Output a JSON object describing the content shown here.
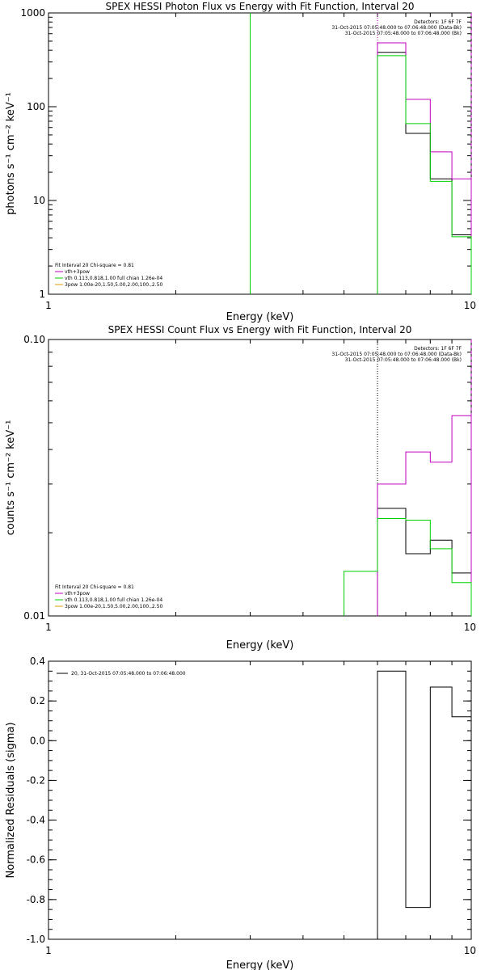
{
  "colors": {
    "data": "#000000",
    "black": "#000000",
    "magenta": "#c000c0",
    "green": "#00d000",
    "orange": "#e0a000",
    "bk": "#c000c0"
  },
  "chart_data": [
    {
      "type": "line",
      "title": "SPEX HESSI Photon Flux vs Energy with Fit Function, Interval 20",
      "xlabel": "Energy (keV)",
      "ylabel": "photons s⁻¹ cm⁻² keV⁻¹",
      "xscale": "log",
      "yscale": "log",
      "xlim": [
        1,
        10
      ],
      "ylim": [
        1,
        1000
      ],
      "xticks": [
        {
          "v": 1,
          "label": "1"
        },
        {
          "v": 10,
          "label": "10"
        }
      ],
      "yticks": [
        {
          "v": 1,
          "label": "1"
        },
        {
          "v": 10,
          "label": "10"
        },
        {
          "v": 100,
          "label": "100"
        },
        {
          "v": 1000,
          "label": "1000"
        }
      ],
      "edges": [
        6,
        7,
        8,
        9,
        10
      ],
      "series": [
        {
          "key": "data",
          "color": "#000000",
          "values": [
            380,
            52,
            17,
            4.3
          ]
        },
        {
          "key": "bk",
          "color": "#c000c0",
          "values": [
            480,
            120,
            33,
            17
          ]
        },
        {
          "key": "green",
          "color": "#00d000",
          "values": [
            350,
            66,
            16,
            4.1
          ]
        }
      ],
      "vlines": [
        {
          "x": 3,
          "color": "#00d000",
          "style": "solid"
        },
        {
          "x": 6,
          "color": "#00d000",
          "style": "dotted"
        },
        {
          "x": 6,
          "color": "#c000c0",
          "style": "dotted"
        },
        {
          "x": 10,
          "color": "#c000c0",
          "style": "dashed"
        }
      ],
      "info_lines": [
        "Detectors: 1F 6F 7F",
        "31-Oct-2015 07:05:48.000 to 07:06:48.000 (Data-Bk)",
        "31-Oct-2015 07:05:48.000 to 07:06:48.000 (Bk)"
      ],
      "fit_lines": [
        {
          "text": "Fit Interval 20   Chi-square = 0.81",
          "color": "#000000"
        },
        {
          "text": "vth+3pow",
          "color": "#c000c0"
        },
        {
          "text": "vth 0.113,0.818,1.00  full chian 1.26e-04",
          "color": "#00d000"
        },
        {
          "text": "3pow 1.00e-20,1.50,5.00,2.00,100.,2.50",
          "color": "#e0a000"
        }
      ]
    },
    {
      "type": "line",
      "title": "SPEX HESSI Count Flux vs Energy with Fit Function, Interval 20",
      "xlabel": "Energy (keV)",
      "ylabel": "counts s⁻¹ cm⁻² keV⁻¹",
      "xscale": "log",
      "yscale": "log",
      "xlim": [
        1,
        10
      ],
      "ylim": [
        0.01,
        0.1
      ],
      "xticks": [
        {
          "v": 1,
          "label": "1"
        },
        {
          "v": 10,
          "label": "10"
        }
      ],
      "yticks": [
        {
          "v": 0.01,
          "label": "0.01"
        },
        {
          "v": 0.1,
          "label": "0.10"
        }
      ],
      "edges": [
        5,
        6,
        7,
        8,
        9,
        10
      ],
      "series": [
        {
          "key": "data",
          "color": "#000000",
          "values": [
            null,
            0.0245,
            0.0168,
            0.0188,
            0.0143
          ]
        },
        {
          "key": "bk",
          "color": "#c000c0",
          "values": [
            null,
            0.03,
            0.0392,
            0.036,
            0.053
          ]
        },
        {
          "key": "green",
          "color": "#00d000",
          "values": [
            0.0145,
            0.0225,
            0.0222,
            0.0175,
            0.0132
          ]
        }
      ],
      "vlines": [
        {
          "x": 6,
          "color": "#000000",
          "style": "dotted"
        },
        {
          "x": 10,
          "color": "#c000c0",
          "style": "dashed"
        }
      ],
      "info_lines": [
        "Detectors: 1F 6F 7F",
        "31-Oct-2015 07:05:48.000 to 07:06:48.000 (Data-Bk)",
        "31-Oct-2015 07:05:48.000 to 07:06:48.000 (Bk)"
      ],
      "fit_lines": [
        {
          "text": "Fit Interval 20   Chi-square = 0.81",
          "color": "#000000"
        },
        {
          "text": "vth+3pow",
          "color": "#c000c0"
        },
        {
          "text": "vth 0.113,0.818,1.00  full chian 1.26e-04",
          "color": "#00d000"
        },
        {
          "text": "3pow 1.00e-20,1.50,5.00,2.00,100.,2.50",
          "color": "#e0a000"
        }
      ]
    },
    {
      "type": "line",
      "title": "",
      "xlabel": "Energy (keV)",
      "ylabel": "Normalized Residuals (sigma)",
      "xscale": "log",
      "yscale": "linear",
      "xlim": [
        1,
        10
      ],
      "ylim": [
        -1.0,
        0.4
      ],
      "xticks": [
        {
          "v": 1,
          "label": "1"
        },
        {
          "v": 10,
          "label": "10"
        }
      ],
      "yticks": [
        {
          "v": 0.4,
          "label": "0.4"
        },
        {
          "v": 0.2,
          "label": "0.2"
        },
        {
          "v": 0.0,
          "label": "0.0"
        },
        {
          "v": -0.2,
          "label": "-0.2"
        },
        {
          "v": -0.4,
          "label": "-0.4"
        },
        {
          "v": -0.6,
          "label": "-0.6"
        },
        {
          "v": -0.8,
          "label": "-0.8"
        },
        {
          "v": -1.0,
          "label": "-1.0"
        }
      ],
      "edges": [
        6,
        7,
        8,
        9,
        10
      ],
      "series": [
        {
          "key": "data",
          "color": "#000000",
          "values": [
            0.35,
            -0.84,
            0.27,
            0.12
          ]
        }
      ],
      "vlines": [],
      "info_lines": [],
      "fit_lines": [],
      "legend": "20, 31-Oct-2015 07:05:48.000 to 07:06:48.000"
    }
  ]
}
